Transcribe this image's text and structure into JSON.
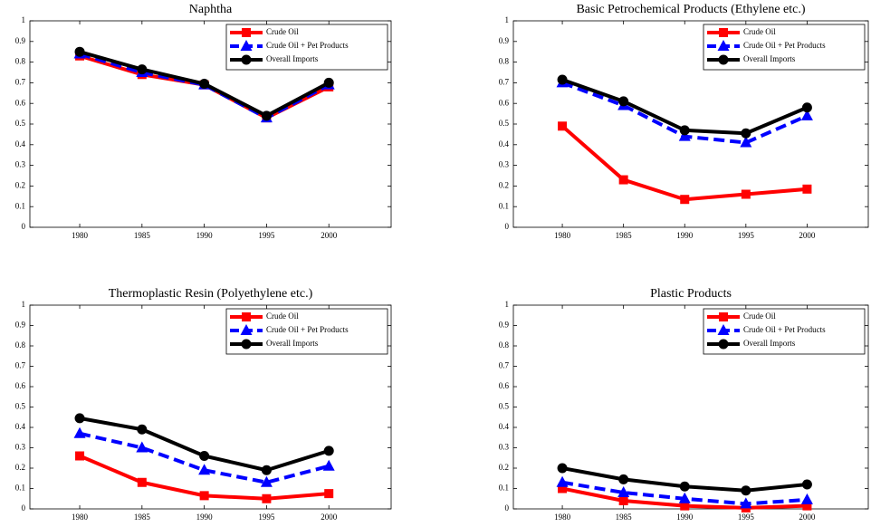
{
  "chart_data": [
    {
      "type": "line",
      "title": "Naphtha",
      "x": [
        1980,
        1985,
        1990,
        1995,
        2000
      ],
      "xlim": [
        1976,
        2005
      ],
      "xticks": [
        1980,
        1985,
        1990,
        1995,
        2000
      ],
      "ylim": [
        0,
        1
      ],
      "yticks": [
        0,
        0.1,
        0.2,
        0.3,
        0.4,
        0.5,
        0.6,
        0.7,
        0.8,
        0.9,
        1
      ],
      "legend": "upper right",
      "series": [
        {
          "name": "Crude Oil",
          "color": "#ff0000",
          "marker": "square",
          "dash": false,
          "values": [
            0.83,
            0.74,
            0.69,
            0.53,
            0.68
          ]
        },
        {
          "name": "Crude Oil + Pet Products",
          "color": "#0000ff",
          "marker": "triangle",
          "dash": true,
          "values": [
            0.84,
            0.75,
            0.69,
            0.53,
            0.69
          ]
        },
        {
          "name": "Overall Imports",
          "color": "#000000",
          "marker": "circle",
          "dash": false,
          "values": [
            0.85,
            0.765,
            0.695,
            0.54,
            0.7
          ]
        }
      ]
    },
    {
      "type": "line",
      "title": "Basic Petrochemical Products (Ethylene etc.)",
      "x": [
        1980,
        1985,
        1990,
        1995,
        2000
      ],
      "xlim": [
        1976,
        2005
      ],
      "xticks": [
        1980,
        1985,
        1990,
        1995,
        2000
      ],
      "ylim": [
        0,
        1
      ],
      "yticks": [
        0,
        0.1,
        0.2,
        0.3,
        0.4,
        0.5,
        0.6,
        0.7,
        0.8,
        0.9,
        1
      ],
      "legend": "upper right",
      "series": [
        {
          "name": "Crude Oil",
          "color": "#ff0000",
          "marker": "square",
          "dash": false,
          "values": [
            0.49,
            0.23,
            0.135,
            0.16,
            0.185
          ]
        },
        {
          "name": "Crude Oil + Pet Products",
          "color": "#0000ff",
          "marker": "triangle",
          "dash": true,
          "values": [
            0.7,
            0.59,
            0.44,
            0.41,
            0.54
          ]
        },
        {
          "name": "Overall Imports",
          "color": "#000000",
          "marker": "circle",
          "dash": false,
          "values": [
            0.715,
            0.61,
            0.47,
            0.455,
            0.58
          ]
        }
      ]
    },
    {
      "type": "line",
      "title": "Thermoplastic Resin (Polyethylene etc.)",
      "x": [
        1980,
        1985,
        1990,
        1995,
        2000
      ],
      "xlim": [
        1976,
        2005
      ],
      "xticks": [
        1980,
        1985,
        1990,
        1995,
        2000
      ],
      "ylim": [
        0,
        1
      ],
      "yticks": [
        0,
        0.1,
        0.2,
        0.3,
        0.4,
        0.5,
        0.6,
        0.7,
        0.8,
        0.9,
        1
      ],
      "legend": "upper right",
      "series": [
        {
          "name": "Crude Oil",
          "color": "#ff0000",
          "marker": "square",
          "dash": false,
          "values": [
            0.26,
            0.13,
            0.065,
            0.05,
            0.075
          ]
        },
        {
          "name": "Crude Oil + Pet Products",
          "color": "#0000ff",
          "marker": "triangle",
          "dash": true,
          "values": [
            0.37,
            0.3,
            0.19,
            0.13,
            0.21
          ]
        },
        {
          "name": "Overall Imports",
          "color": "#000000",
          "marker": "circle",
          "dash": false,
          "values": [
            0.445,
            0.39,
            0.26,
            0.19,
            0.285
          ]
        }
      ]
    },
    {
      "type": "line",
      "title": "Plastic Products",
      "x": [
        1980,
        1985,
        1990,
        1995,
        2000
      ],
      "xlim": [
        1976,
        2005
      ],
      "xticks": [
        1980,
        1985,
        1990,
        1995,
        2000
      ],
      "ylim": [
        0,
        1
      ],
      "yticks": [
        0,
        0.1,
        0.2,
        0.3,
        0.4,
        0.5,
        0.6,
        0.7,
        0.8,
        0.9,
        1
      ],
      "legend": "upper right",
      "series": [
        {
          "name": "Crude Oil",
          "color": "#ff0000",
          "marker": "square",
          "dash": false,
          "values": [
            0.1,
            0.04,
            0.015,
            0.005,
            0.015
          ]
        },
        {
          "name": "Crude Oil + Pet Products",
          "color": "#0000ff",
          "marker": "triangle",
          "dash": true,
          "values": [
            0.13,
            0.08,
            0.05,
            0.025,
            0.045
          ]
        },
        {
          "name": "Overall Imports",
          "color": "#000000",
          "marker": "circle",
          "dash": false,
          "values": [
            0.2,
            0.145,
            0.11,
            0.09,
            0.12
          ]
        }
      ]
    }
  ]
}
